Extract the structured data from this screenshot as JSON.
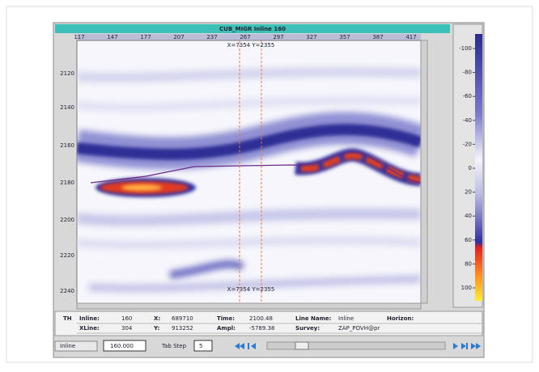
{
  "window": {
    "title": "CUB_MIGR Inline 160"
  },
  "top_axis": {
    "labels": [
      "117",
      "147",
      "177",
      "207",
      "237",
      "267",
      "297",
      "327",
      "357",
      "387",
      "417"
    ]
  },
  "left_axis": {
    "labels": [
      "2120",
      "2140",
      "2160",
      "2180",
      "2200",
      "2220",
      "2240"
    ]
  },
  "colorbar": {
    "labels": [
      "-100",
      "-80",
      "-60",
      "-40",
      "-20",
      "0",
      "20",
      "40",
      "60",
      "80",
      "100"
    ]
  },
  "cursor": {
    "top_label": "X=7354 Y=2355",
    "bottom_label": "X=7354 Y=2355"
  },
  "info": {
    "header": "TH",
    "rows": [
      [
        "Inline:",
        "160",
        "X:",
        "689710",
        "Time:",
        "2100.48",
        "Line Name:",
        "Inline",
        "Horizon:"
      ],
      [
        "XLine:",
        "304",
        "Y:",
        "913252",
        "Ampl:",
        "-5789.38",
        "Survey:",
        "ZAP_POVH@pr"
      ]
    ]
  },
  "controls": {
    "mode": "Inline",
    "position": "160.000",
    "tab_step_label": "Tab Step",
    "tab_step": "5"
  }
}
